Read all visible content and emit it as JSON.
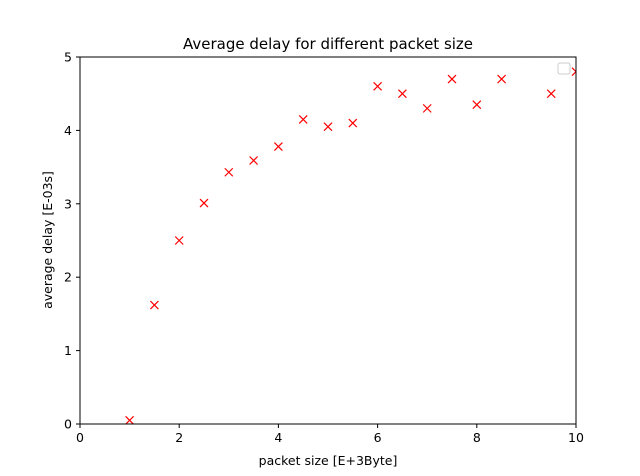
{
  "chart_data": {
    "type": "scatter",
    "title": "Average delay for different packet size",
    "xlabel": "packet size [E+3Byte]",
    "ylabel": "average delay [E-03s]",
    "xlim": [
      0,
      10
    ],
    "ylim": [
      0,
      5
    ],
    "xticks": [
      "0",
      "2",
      "4",
      "6",
      "8",
      "10"
    ],
    "yticks": [
      "0",
      "1",
      "2",
      "3",
      "4",
      "5"
    ],
    "grid": false,
    "legend": "top-right",
    "marker": "x",
    "series": [
      {
        "color": "#ff0000",
        "x": [
          1,
          1.5,
          2,
          2.5,
          3,
          3.5,
          4,
          4.5,
          5,
          5.5,
          6,
          6.5,
          7,
          7.5,
          8,
          8.5,
          9,
          9.5,
          10
        ],
        "y": [
          0.05,
          1.62,
          2.5,
          3.01,
          3.43,
          3.59,
          3.78,
          4.15,
          4.05,
          4.1,
          4.6,
          4.5,
          4.3,
          4.7,
          4.35,
          4.7,
          5.05,
          4.5,
          4.8
        ]
      }
    ]
  }
}
